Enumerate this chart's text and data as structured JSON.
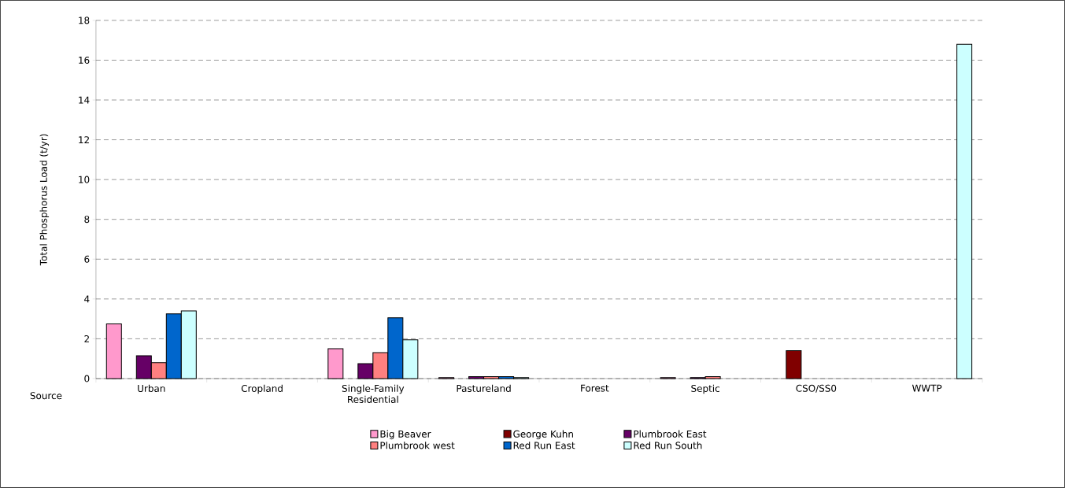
{
  "chart_data": {
    "type": "bar",
    "ylabel": "Total Phosphorus Load  (t/yr)",
    "annotations": [
      "Source"
    ],
    "categories": [
      "Urban",
      "Cropland",
      "Single-Family Residential",
      "Pastureland",
      "Forest",
      "Septic",
      "CSO/SS0",
      "WWTP"
    ],
    "series": [
      {
        "name": "Big Beaver",
        "color": "#ff99cc",
        "values": [
          2.75,
          null,
          1.5,
          0.05,
          null,
          0.05,
          null,
          null
        ]
      },
      {
        "name": "George Kuhn",
        "color": "#800000",
        "values": [
          null,
          null,
          null,
          null,
          null,
          null,
          1.4,
          null
        ]
      },
      {
        "name": "Plumbrook East",
        "color": "#660066",
        "values": [
          1.15,
          null,
          0.75,
          0.1,
          null,
          0.05,
          null,
          null
        ]
      },
      {
        "name": "Plumbrook west",
        "color": "#ff8080",
        "values": [
          0.8,
          null,
          1.3,
          0.1,
          null,
          0.1,
          null,
          null
        ]
      },
      {
        "name": "Red Run East",
        "color": "#0066cc",
        "values": [
          3.25,
          null,
          3.05,
          0.1,
          null,
          null,
          null,
          null
        ]
      },
      {
        "name": "Red Run South",
        "color": "#ccffff",
        "values": [
          3.4,
          null,
          1.95,
          0.05,
          null,
          null,
          null,
          16.8
        ]
      }
    ],
    "ylim": [
      0,
      18
    ],
    "yticks": [
      0,
      2,
      4,
      6,
      8,
      10,
      12,
      14,
      16,
      18
    ],
    "grid": "y",
    "legend": "bottom"
  }
}
